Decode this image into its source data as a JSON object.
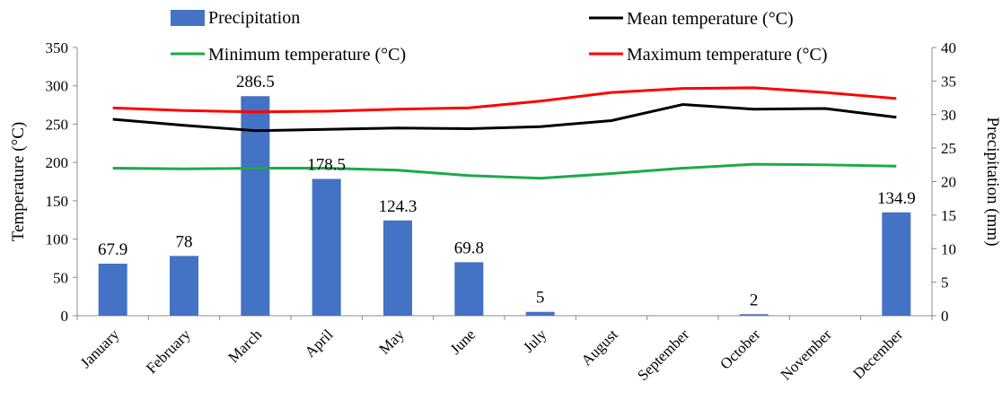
{
  "chart_data": {
    "type": "bar",
    "categories": [
      "January",
      "February",
      "March",
      "April",
      "May",
      "June",
      "July",
      "August",
      "September",
      "October",
      "November",
      "December"
    ],
    "y_left": {
      "label": "Temperature (°C)",
      "lim": [
        0,
        350
      ],
      "ticks": [
        0,
        50,
        100,
        150,
        200,
        250,
        300,
        350
      ]
    },
    "y_right": {
      "label": "Precipitation (mm)",
      "lim": [
        0,
        40
      ],
      "ticks": [
        0,
        5,
        10,
        15,
        20,
        25,
        30,
        35,
        40
      ]
    },
    "bars": {
      "name": "Precipitation",
      "color": "#4472C4",
      "axis": "left",
      "values": [
        67.9,
        78,
        286.5,
        178.5,
        124.3,
        69.8,
        5,
        0,
        0,
        2,
        0,
        134.9
      ],
      "labels": [
        "67.9",
        "78",
        "286.5",
        "178.5",
        "124.3",
        "69.8",
        "5",
        "",
        "",
        "2",
        "",
        "134.9"
      ]
    },
    "lines": [
      {
        "name": "Mean temperature (°C)",
        "color": "#000000",
        "axis": "right",
        "values": [
          29.3,
          28.4,
          27.6,
          27.8,
          28.0,
          27.9,
          28.2,
          29.1,
          31.5,
          30.8,
          30.9,
          29.6
        ]
      },
      {
        "name": "Minimum temperature (°C)",
        "color": "#1DAA49",
        "axis": "right",
        "values": [
          22.0,
          21.9,
          22.0,
          22.0,
          21.7,
          20.9,
          20.5,
          21.2,
          22.0,
          22.6,
          22.5,
          22.3
        ]
      },
      {
        "name": "Maximum temperature (°C)",
        "color": "#FF0000",
        "axis": "right",
        "values": [
          31.0,
          30.6,
          30.4,
          30.5,
          30.8,
          31.0,
          32.0,
          33.3,
          33.9,
          34.0,
          33.3,
          32.4
        ]
      }
    ],
    "legend": {
      "placement": "top",
      "columns": 2
    },
    "grid": false
  }
}
